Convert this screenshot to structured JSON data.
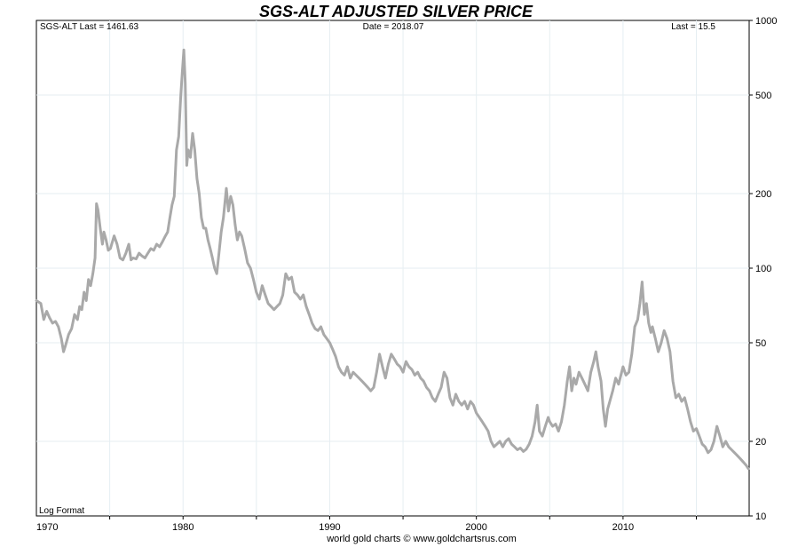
{
  "chart_data": {
    "type": "line",
    "title": "SGS-ALT ADJUSTED  SILVER PRICE",
    "header_left": "SGS-ALT Last = 1461.63",
    "header_center": "Date = 2018.07",
    "header_right": "Last = 15.5",
    "scale_note": "Log Format",
    "footer": "world gold charts © www.goldchartsrus.com",
    "y_scale": "log",
    "ylim": [
      10,
      1000
    ],
    "xlim": [
      1970.0,
      2018.6
    ],
    "grid": true,
    "y_ticks": [
      10,
      20,
      50,
      100,
      200,
      500,
      1000
    ],
    "y_tick_labels": [
      "10",
      "20",
      "50",
      "100",
      "200",
      "500",
      "1000"
    ],
    "x_ticks": [
      1970,
      1980,
      1990,
      2000,
      2010
    ],
    "x_tick_labels": [
      "1970",
      "1980",
      "1990",
      "2000",
      "2010"
    ],
    "colors": {
      "title": "#1a3dcc",
      "line": "#a9a9a9",
      "grid": "#e6eef2"
    },
    "series": [
      {
        "values": [
          [
            1970.0,
            74
          ],
          [
            1970.3,
            72
          ],
          [
            1970.5,
            62
          ],
          [
            1970.7,
            67
          ],
          [
            1970.9,
            63
          ],
          [
            1971.1,
            60
          ],
          [
            1971.3,
            61
          ],
          [
            1971.5,
            58
          ],
          [
            1971.7,
            52
          ],
          [
            1971.85,
            46
          ],
          [
            1972.0,
            49
          ],
          [
            1972.2,
            54
          ],
          [
            1972.4,
            57
          ],
          [
            1972.6,
            65
          ],
          [
            1972.8,
            62
          ],
          [
            1972.95,
            70
          ],
          [
            1973.1,
            68
          ],
          [
            1973.25,
            80
          ],
          [
            1973.4,
            74
          ],
          [
            1973.55,
            90
          ],
          [
            1973.7,
            85
          ],
          [
            1973.85,
            95
          ],
          [
            1974.0,
            110
          ],
          [
            1974.1,
            182
          ],
          [
            1974.2,
            172
          ],
          [
            1974.35,
            145
          ],
          [
            1974.5,
            125
          ],
          [
            1974.6,
            140
          ],
          [
            1974.75,
            130
          ],
          [
            1974.9,
            118
          ],
          [
            1975.05,
            120
          ],
          [
            1975.3,
            135
          ],
          [
            1975.5,
            125
          ],
          [
            1975.7,
            110
          ],
          [
            1975.9,
            108
          ],
          [
            1976.1,
            115
          ],
          [
            1976.3,
            125
          ],
          [
            1976.45,
            108
          ],
          [
            1976.6,
            110
          ],
          [
            1976.8,
            109
          ],
          [
            1977.0,
            115
          ],
          [
            1977.2,
            112
          ],
          [
            1977.4,
            110
          ],
          [
            1977.6,
            115
          ],
          [
            1977.8,
            120
          ],
          [
            1978.0,
            118
          ],
          [
            1978.2,
            125
          ],
          [
            1978.4,
            122
          ],
          [
            1978.6,
            128
          ],
          [
            1978.8,
            135
          ],
          [
            1978.95,
            140
          ],
          [
            1979.1,
            160
          ],
          [
            1979.25,
            180
          ],
          [
            1979.4,
            195
          ],
          [
            1979.55,
            300
          ],
          [
            1979.7,
            340
          ],
          [
            1979.85,
            500
          ],
          [
            1979.95,
            620
          ],
          [
            1980.05,
            760
          ],
          [
            1980.15,
            560
          ],
          [
            1980.25,
            260
          ],
          [
            1980.35,
            300
          ],
          [
            1980.5,
            280
          ],
          [
            1980.65,
            350
          ],
          [
            1980.8,
            300
          ],
          [
            1980.95,
            230
          ],
          [
            1981.1,
            200
          ],
          [
            1981.25,
            160
          ],
          [
            1981.4,
            145
          ],
          [
            1981.55,
            145
          ],
          [
            1981.7,
            130
          ],
          [
            1981.85,
            120
          ],
          [
            1982.0,
            110
          ],
          [
            1982.15,
            100
          ],
          [
            1982.3,
            95
          ],
          [
            1982.45,
            115
          ],
          [
            1982.6,
            140
          ],
          [
            1982.75,
            160
          ],
          [
            1982.95,
            210
          ],
          [
            1983.1,
            170
          ],
          [
            1983.25,
            195
          ],
          [
            1983.4,
            180
          ],
          [
            1983.55,
            150
          ],
          [
            1983.7,
            130
          ],
          [
            1983.85,
            140
          ],
          [
            1984.0,
            135
          ],
          [
            1984.2,
            120
          ],
          [
            1984.4,
            105
          ],
          [
            1984.6,
            100
          ],
          [
            1984.8,
            90
          ],
          [
            1985.0,
            80
          ],
          [
            1985.2,
            75
          ],
          [
            1985.4,
            85
          ],
          [
            1985.6,
            78
          ],
          [
            1985.8,
            72
          ],
          [
            1986.0,
            70
          ],
          [
            1986.2,
            68
          ],
          [
            1986.4,
            70
          ],
          [
            1986.6,
            72
          ],
          [
            1986.8,
            78
          ],
          [
            1987.0,
            95
          ],
          [
            1987.2,
            90
          ],
          [
            1987.4,
            92
          ],
          [
            1987.6,
            80
          ],
          [
            1987.8,
            78
          ],
          [
            1988.0,
            75
          ],
          [
            1988.2,
            78
          ],
          [
            1988.4,
            70
          ],
          [
            1988.6,
            65
          ],
          [
            1988.8,
            60
          ],
          [
            1989.0,
            57
          ],
          [
            1989.2,
            56
          ],
          [
            1989.4,
            58
          ],
          [
            1989.6,
            54
          ],
          [
            1989.8,
            52
          ],
          [
            1990.0,
            50
          ],
          [
            1990.2,
            47
          ],
          [
            1990.4,
            44
          ],
          [
            1990.6,
            40
          ],
          [
            1990.8,
            38
          ],
          [
            1991.0,
            37
          ],
          [
            1991.2,
            40
          ],
          [
            1991.4,
            36
          ],
          [
            1991.6,
            38
          ],
          [
            1991.8,
            37
          ],
          [
            1992.0,
            36
          ],
          [
            1992.2,
            35
          ],
          [
            1992.4,
            34
          ],
          [
            1992.6,
            33
          ],
          [
            1992.8,
            32
          ],
          [
            1993.0,
            33
          ],
          [
            1993.2,
            38
          ],
          [
            1993.4,
            45
          ],
          [
            1993.6,
            40
          ],
          [
            1993.8,
            36
          ],
          [
            1994.0,
            41
          ],
          [
            1994.2,
            45
          ],
          [
            1994.4,
            43
          ],
          [
            1994.6,
            41
          ],
          [
            1994.8,
            40
          ],
          [
            1995.0,
            38
          ],
          [
            1995.2,
            42
          ],
          [
            1995.4,
            40
          ],
          [
            1995.6,
            39
          ],
          [
            1995.8,
            37
          ],
          [
            1996.0,
            38
          ],
          [
            1996.2,
            36
          ],
          [
            1996.4,
            35
          ],
          [
            1996.6,
            33
          ],
          [
            1996.8,
            32
          ],
          [
            1997.0,
            30
          ],
          [
            1997.2,
            29
          ],
          [
            1997.4,
            31
          ],
          [
            1997.6,
            33
          ],
          [
            1997.8,
            38
          ],
          [
            1998.0,
            36
          ],
          [
            1998.2,
            30
          ],
          [
            1998.4,
            28
          ],
          [
            1998.6,
            31
          ],
          [
            1998.8,
            29
          ],
          [
            1999.0,
            28
          ],
          [
            1999.2,
            29
          ],
          [
            1999.4,
            27
          ],
          [
            1999.6,
            29
          ],
          [
            1999.8,
            28
          ],
          [
            2000.0,
            26
          ],
          [
            2000.2,
            25
          ],
          [
            2000.4,
            24
          ],
          [
            2000.6,
            23
          ],
          [
            2000.8,
            22
          ],
          [
            2001.0,
            20
          ],
          [
            2001.2,
            19
          ],
          [
            2001.4,
            19.5
          ],
          [
            2001.6,
            20
          ],
          [
            2001.8,
            19
          ],
          [
            2002.0,
            20
          ],
          [
            2002.2,
            20.5
          ],
          [
            2002.4,
            19.5
          ],
          [
            2002.6,
            19
          ],
          [
            2002.8,
            18.5
          ],
          [
            2003.0,
            18.8
          ],
          [
            2003.2,
            18.2
          ],
          [
            2003.4,
            18.6
          ],
          [
            2003.6,
            19.5
          ],
          [
            2003.8,
            21
          ],
          [
            2004.0,
            24
          ],
          [
            2004.15,
            28
          ],
          [
            2004.3,
            22
          ],
          [
            2004.5,
            21
          ],
          [
            2004.7,
            23
          ],
          [
            2004.9,
            25
          ],
          [
            2005.0,
            24
          ],
          [
            2005.2,
            23
          ],
          [
            2005.4,
            23.5
          ],
          [
            2005.6,
            22
          ],
          [
            2005.8,
            24
          ],
          [
            2006.0,
            28
          ],
          [
            2006.2,
            35
          ],
          [
            2006.35,
            40
          ],
          [
            2006.5,
            32
          ],
          [
            2006.65,
            36
          ],
          [
            2006.8,
            34
          ],
          [
            2007.0,
            38
          ],
          [
            2007.2,
            36
          ],
          [
            2007.4,
            34
          ],
          [
            2007.6,
            32
          ],
          [
            2007.8,
            38
          ],
          [
            2008.0,
            42
          ],
          [
            2008.15,
            46
          ],
          [
            2008.3,
            40
          ],
          [
            2008.5,
            35
          ],
          [
            2008.65,
            27
          ],
          [
            2008.8,
            23
          ],
          [
            2008.95,
            27
          ],
          [
            2009.1,
            29
          ],
          [
            2009.3,
            32
          ],
          [
            2009.5,
            36
          ],
          [
            2009.7,
            34
          ],
          [
            2009.9,
            38
          ],
          [
            2010.0,
            40
          ],
          [
            2010.2,
            37
          ],
          [
            2010.4,
            38
          ],
          [
            2010.6,
            45
          ],
          [
            2010.8,
            58
          ],
          [
            2011.0,
            62
          ],
          [
            2011.15,
            72
          ],
          [
            2011.3,
            88
          ],
          [
            2011.45,
            65
          ],
          [
            2011.6,
            72
          ],
          [
            2011.75,
            60
          ],
          [
            2011.9,
            55
          ],
          [
            2012.0,
            58
          ],
          [
            2012.2,
            52
          ],
          [
            2012.4,
            46
          ],
          [
            2012.6,
            50
          ],
          [
            2012.8,
            56
          ],
          [
            2013.0,
            52
          ],
          [
            2013.2,
            46
          ],
          [
            2013.4,
            35
          ],
          [
            2013.6,
            30
          ],
          [
            2013.8,
            31
          ],
          [
            2014.0,
            29
          ],
          [
            2014.2,
            30
          ],
          [
            2014.4,
            27
          ],
          [
            2014.6,
            24
          ],
          [
            2014.8,
            22
          ],
          [
            2015.0,
            22.5
          ],
          [
            2015.2,
            21
          ],
          [
            2015.4,
            19.5
          ],
          [
            2015.6,
            19
          ],
          [
            2015.8,
            18
          ],
          [
            2016.0,
            18.5
          ],
          [
            2016.2,
            20
          ],
          [
            2016.4,
            23
          ],
          [
            2016.6,
            21
          ],
          [
            2016.8,
            19
          ],
          [
            2017.0,
            20
          ],
          [
            2017.2,
            19
          ],
          [
            2017.4,
            18.5
          ],
          [
            2017.6,
            18
          ],
          [
            2017.8,
            17.5
          ],
          [
            2018.0,
            17
          ],
          [
            2018.2,
            16.5
          ],
          [
            2018.4,
            16
          ],
          [
            2018.55,
            15.5
          ]
        ]
      }
    ]
  }
}
